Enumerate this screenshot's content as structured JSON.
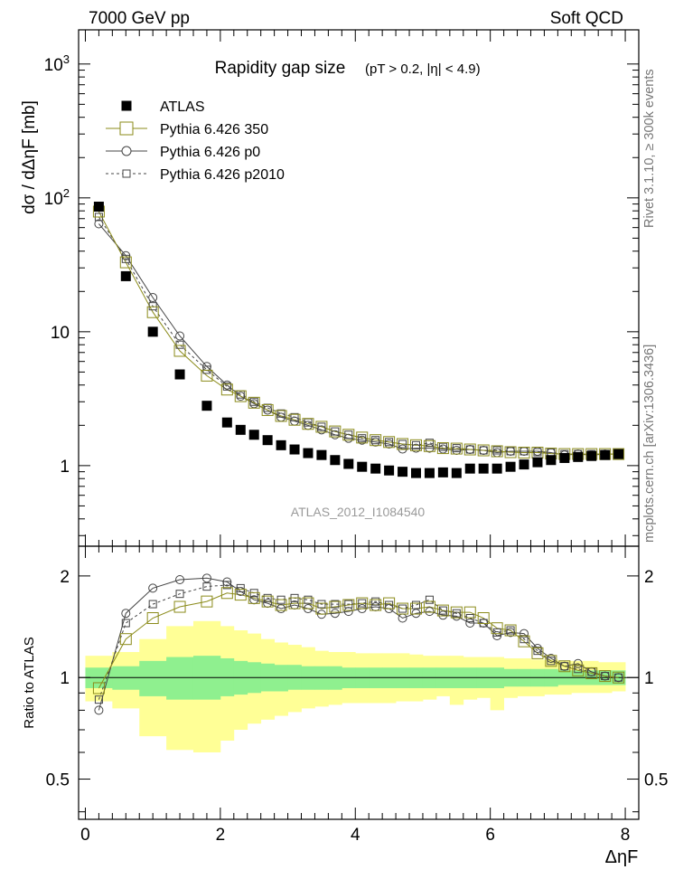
{
  "header": {
    "left": "7000 GeV pp",
    "right": "Soft QCD"
  },
  "side_labels": {
    "rivet": "Rivet 3.1.10, ≥ 300k events",
    "mcplots": "mcplots.cern.ch [arXiv:1306.3436]"
  },
  "colors": {
    "atlas": "#000000",
    "p350": "#8b8b1a",
    "p0": "#444444",
    "p2010": "#444444",
    "band_stat": "#8ff08f",
    "band_total": "#ffff96"
  },
  "chart_data": [
    {
      "type": "scatter",
      "title": "Rapidity gap size",
      "subtitle": "(pT > 0.2, |η| < 4.9)",
      "ylabel": "dσ / dΔηF [mb]",
      "xlabel": "ΔηF",
      "yscale": "log",
      "xlim": [
        -0.1,
        8.2
      ],
      "ylim": [
        0.25,
        1800
      ],
      "yticks": [
        {
          "v": 1,
          "label": "1"
        },
        {
          "v": 10,
          "label": "10"
        },
        {
          "v": 100,
          "label": "10",
          "sup": "2"
        },
        {
          "v": 1000,
          "label": "10",
          "sup": "3"
        }
      ],
      "watermark": "ATLAS_2012_I1084540",
      "legend": [
        {
          "key": "atlas",
          "label": "ATLAS"
        },
        {
          "key": "p350",
          "label": "Pythia 6.426 350"
        },
        {
          "key": "p0",
          "label": "Pythia 6.426 p0"
        },
        {
          "key": "p2010",
          "label": "Pythia 6.426 p2010"
        }
      ],
      "x": [
        0.2,
        0.6,
        1.0,
        1.4,
        1.8,
        2.1,
        2.3,
        2.5,
        2.7,
        2.9,
        3.1,
        3.3,
        3.5,
        3.7,
        3.9,
        4.1,
        4.3,
        4.5,
        4.7,
        4.9,
        5.1,
        5.3,
        5.5,
        5.7,
        5.9,
        6.1,
        6.3,
        6.5,
        6.7,
        6.9,
        7.1,
        7.3,
        7.5,
        7.7,
        7.9
      ],
      "series": [
        {
          "key": "atlas",
          "name": "ATLAS",
          "values": [
            86,
            26,
            10,
            4.8,
            2.8,
            2.1,
            1.85,
            1.7,
            1.55,
            1.42,
            1.32,
            1.24,
            1.2,
            1.1,
            1.03,
            0.98,
            0.95,
            0.92,
            0.9,
            0.88,
            0.88,
            0.89,
            0.88,
            0.95,
            0.95,
            0.95,
            0.98,
            1.02,
            1.06,
            1.1,
            1.14,
            1.16,
            1.18,
            1.2,
            1.22
          ]
        },
        {
          "key": "p350",
          "name": "Pythia 6.426 350",
          "values": [
            79,
            33,
            14,
            7.2,
            4.7,
            3.7,
            3.3,
            2.95,
            2.6,
            2.35,
            2.2,
            2.05,
            1.95,
            1.8,
            1.7,
            1.62,
            1.55,
            1.5,
            1.45,
            1.42,
            1.4,
            1.35,
            1.34,
            1.32,
            1.3,
            1.28,
            1.26,
            1.25,
            1.25,
            1.23,
            1.22,
            1.22,
            1.22,
            1.22,
            1.22
          ]
        },
        {
          "key": "p0",
          "name": "Pythia 6.426 p0",
          "values": [
            64,
            37,
            18,
            9.3,
            5.5,
            4.0,
            3.3,
            2.9,
            2.6,
            2.3,
            2.15,
            2.0,
            1.85,
            1.7,
            1.6,
            1.55,
            1.5,
            1.45,
            1.33,
            1.35,
            1.35,
            1.33,
            1.3,
            1.32,
            1.3,
            1.25,
            1.28,
            1.28,
            1.28,
            1.25,
            1.2,
            1.22,
            1.2,
            1.22,
            1.22
          ]
        },
        {
          "key": "p2010",
          "name": "Pythia 6.426 p2010",
          "values": [
            72,
            35,
            15.5,
            8.0,
            5.2,
            3.9,
            3.4,
            3.0,
            2.7,
            2.45,
            2.3,
            2.1,
            1.95,
            1.8,
            1.7,
            1.6,
            1.55,
            1.5,
            1.45,
            1.42,
            1.48,
            1.38,
            1.35,
            1.32,
            1.3,
            1.3,
            1.28,
            1.28,
            1.26,
            1.25,
            1.22,
            1.22,
            1.22,
            1.22,
            1.22
          ]
        }
      ]
    },
    {
      "type": "scatter",
      "title": "",
      "ylabel": "Ratio to ATLAS",
      "xlabel": "ΔηF",
      "yscale": "log",
      "xlim": [
        -0.1,
        8.2
      ],
      "ylim": [
        0.38,
        2.45
      ],
      "yticks": [
        {
          "v": 0.5,
          "label": "0.5"
        },
        {
          "v": 1,
          "label": "1"
        },
        {
          "v": 2,
          "label": "2"
        }
      ],
      "xticks": [
        0,
        2,
        4,
        6,
        8
      ],
      "x": [
        0.2,
        0.6,
        1.0,
        1.4,
        1.8,
        2.1,
        2.3,
        2.5,
        2.7,
        2.9,
        3.1,
        3.3,
        3.5,
        3.7,
        3.9,
        4.1,
        4.3,
        4.5,
        4.7,
        4.9,
        5.1,
        5.3,
        5.5,
        5.7,
        5.9,
        6.1,
        6.3,
        6.5,
        6.7,
        6.9,
        7.1,
        7.3,
        7.5,
        7.7,
        7.9
      ],
      "bins": [
        0,
        0.4,
        0.8,
        1.2,
        1.6,
        2.0,
        2.2,
        2.4,
        2.6,
        2.8,
        3.0,
        3.2,
        3.4,
        3.6,
        3.8,
        4.0,
        4.2,
        4.4,
        4.6,
        4.8,
        5.0,
        5.2,
        5.4,
        5.6,
        5.8,
        6.0,
        6.2,
        6.4,
        6.6,
        6.8,
        7.0,
        7.2,
        7.4,
        7.6,
        7.8,
        8.0
      ],
      "band_total_up": [
        1.16,
        1.19,
        1.3,
        1.42,
        1.47,
        1.42,
        1.38,
        1.35,
        1.3,
        1.27,
        1.25,
        1.23,
        1.2,
        1.19,
        1.19,
        1.18,
        1.18,
        1.18,
        1.18,
        1.17,
        1.16,
        1.16,
        1.16,
        1.15,
        1.15,
        1.15,
        1.14,
        1.14,
        1.13,
        1.13,
        1.12,
        1.12,
        1.12,
        1.11,
        1.11
      ],
      "band_total_dn": [
        0.85,
        0.81,
        0.67,
        0.61,
        0.6,
        0.65,
        0.7,
        0.73,
        0.75,
        0.77,
        0.79,
        0.81,
        0.82,
        0.83,
        0.84,
        0.84,
        0.84,
        0.84,
        0.85,
        0.85,
        0.86,
        0.88,
        0.83,
        0.86,
        0.87,
        0.8,
        0.87,
        0.88,
        0.88,
        0.89,
        0.89,
        0.9,
        0.9,
        0.9,
        0.91
      ],
      "band_stat_up": [
        1.07,
        1.08,
        1.12,
        1.15,
        1.16,
        1.14,
        1.12,
        1.11,
        1.1,
        1.09,
        1.09,
        1.08,
        1.08,
        1.08,
        1.07,
        1.07,
        1.07,
        1.07,
        1.07,
        1.07,
        1.07,
        1.07,
        1.07,
        1.07,
        1.07,
        1.07,
        1.06,
        1.06,
        1.06,
        1.06,
        1.05,
        1.05,
        1.05,
        1.05,
        1.05
      ],
      "band_stat_dn": [
        0.93,
        0.92,
        0.88,
        0.86,
        0.86,
        0.88,
        0.89,
        0.9,
        0.91,
        0.91,
        0.92,
        0.92,
        0.92,
        0.92,
        0.93,
        0.93,
        0.93,
        0.93,
        0.93,
        0.93,
        0.93,
        0.93,
        0.93,
        0.93,
        0.93,
        0.93,
        0.94,
        0.94,
        0.94,
        0.94,
        0.95,
        0.95,
        0.95,
        0.95,
        0.95
      ],
      "series": [
        {
          "key": "p350",
          "name": "Pythia 6.426 350",
          "values": [
            0.93,
            1.3,
            1.5,
            1.62,
            1.68,
            1.78,
            1.76,
            1.72,
            1.68,
            1.64,
            1.66,
            1.66,
            1.6,
            1.62,
            1.64,
            1.66,
            1.64,
            1.66,
            1.6,
            1.6,
            1.62,
            1.58,
            1.56,
            1.56,
            1.5,
            1.4,
            1.38,
            1.28,
            1.18,
            1.12,
            1.08,
            1.05,
            1.03,
            1.01,
            1.0
          ]
        },
        {
          "key": "p0",
          "name": "Pythia 6.426 p0",
          "values": [
            0.8,
            1.55,
            1.84,
            1.95,
            1.97,
            1.92,
            1.8,
            1.7,
            1.66,
            1.6,
            1.64,
            1.6,
            1.54,
            1.55,
            1.57,
            1.6,
            1.62,
            1.6,
            1.5,
            1.55,
            1.57,
            1.53,
            1.52,
            1.45,
            1.45,
            1.33,
            1.36,
            1.35,
            1.22,
            1.14,
            1.08,
            1.1,
            1.04,
            1.01,
            1.0
          ]
        },
        {
          "key": "p2010",
          "name": "Pythia 6.426 p2010",
          "values": [
            0.86,
            1.45,
            1.65,
            1.77,
            1.86,
            1.88,
            1.84,
            1.78,
            1.72,
            1.7,
            1.72,
            1.7,
            1.65,
            1.65,
            1.65,
            1.66,
            1.68,
            1.64,
            1.6,
            1.64,
            1.7,
            1.58,
            1.55,
            1.5,
            1.45,
            1.36,
            1.38,
            1.3,
            1.2,
            1.12,
            1.08,
            1.06,
            1.04,
            1.01,
            1.0
          ]
        }
      ]
    }
  ]
}
